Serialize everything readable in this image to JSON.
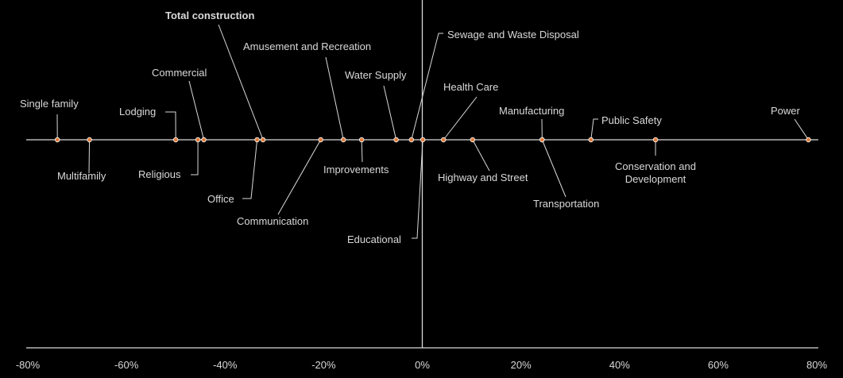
{
  "chart_data": {
    "type": "scatter",
    "title": "",
    "xlabel": "",
    "ylabel": "",
    "xlim": [
      -80,
      80
    ],
    "grid": false,
    "legend": "none",
    "x_ticks": [
      "-80%",
      "-60%",
      "-40%",
      "-20%",
      "0%",
      "20%",
      "40%",
      "60%",
      "80%"
    ],
    "point_color": "#e07b39",
    "axis_color": "#d9d9d9",
    "points": [
      {
        "label": "Single family",
        "x": -74
      },
      {
        "label": "Multifamily",
        "x": -67.5
      },
      {
        "label": "Lodging",
        "x": -50
      },
      {
        "label": "Religious",
        "x": -45.5
      },
      {
        "label": "Commercial",
        "x": -44.3
      },
      {
        "label": "Office",
        "x": -33.5
      },
      {
        "label": "Total construction",
        "x": -32.3,
        "emphasis": true
      },
      {
        "label": "Communication",
        "x": -20.6
      },
      {
        "label": "Amusement and Recreation",
        "x": -16
      },
      {
        "label": "Improvements",
        "x": -12.3
      },
      {
        "label": "Water Supply",
        "x": -5.3
      },
      {
        "label": "Sewage and Waste Disposal",
        "x": -2.2
      },
      {
        "label": "Educational",
        "x": 0.1
      },
      {
        "label": "Health Care",
        "x": 4.3
      },
      {
        "label": "Highway and Street",
        "x": 10.2
      },
      {
        "label": "Transportation",
        "x": 24.3
      },
      {
        "label": "Manufacturing",
        "x": 24.3
      },
      {
        "label": "Public Safety",
        "x": 34.2
      },
      {
        "label": "Conservation and Development",
        "x": 47.3
      },
      {
        "label": "Power",
        "x": 78.3
      }
    ]
  }
}
